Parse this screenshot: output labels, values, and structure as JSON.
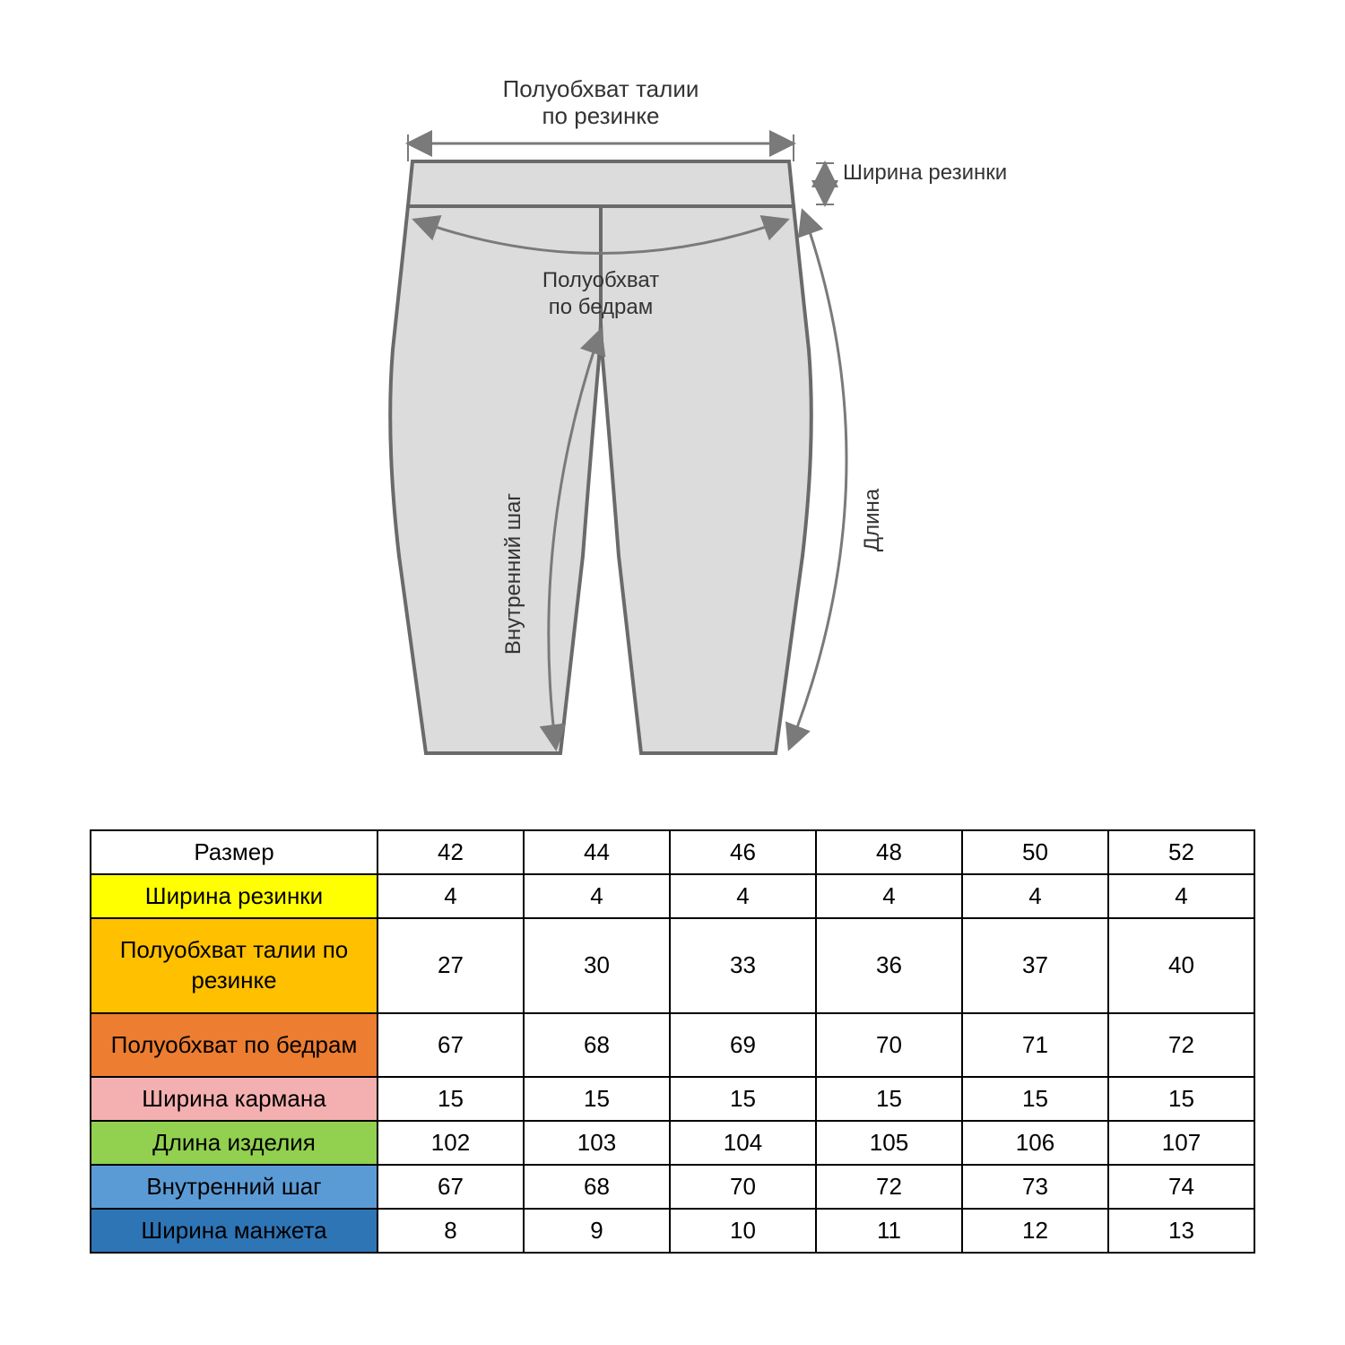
{
  "diagram": {
    "labels": {
      "waist_top1": "Полуобхват талии",
      "waist_top2": "по резинке",
      "elastic_width": "Ширина резинки",
      "hips1": "Полуобхват",
      "hips2": "по бедрам",
      "length": "Длина",
      "inseam": "Внутренний шаг"
    },
    "colors": {
      "pants_fill": "#dcdcdc",
      "pants_stroke": "#6a6a6a",
      "arrow": "#7a7a7a",
      "text": "#333333",
      "bg": "#ffffff"
    }
  },
  "table": {
    "columns": [
      "Размер",
      "42",
      "44",
      "46",
      "48",
      "50",
      "52"
    ],
    "rows": [
      {
        "label": "Ширина резинки",
        "bg": "#ffff00",
        "values": [
          "4",
          "4",
          "4",
          "4",
          "4",
          "4"
        ],
        "tall": false
      },
      {
        "label": "Полуобхват талии по резинке",
        "bg": "#ffc000",
        "values": [
          "27",
          "30",
          "33",
          "36",
          "37",
          "40"
        ],
        "tall": true
      },
      {
        "label": "Полуобхват по бедрам",
        "bg": "#ed7d31",
        "values": [
          "67",
          "68",
          "69",
          "70",
          "71",
          "72"
        ],
        "tall": true
      },
      {
        "label": "Ширина кармана",
        "bg": "#f4b0b0",
        "values": [
          "15",
          "15",
          "15",
          "15",
          "15",
          "15"
        ],
        "tall": false
      },
      {
        "label": "Длина изделия",
        "bg": "#92d050",
        "values": [
          "102",
          "103",
          "104",
          "105",
          "106",
          "107"
        ],
        "tall": false
      },
      {
        "label": "Внутренний шаг",
        "bg": "#5b9bd5",
        "values": [
          "67",
          "68",
          "70",
          "72",
          "73",
          "74"
        ],
        "tall": false
      },
      {
        "label": "Ширина манжета",
        "bg": "#2e75b6",
        "values": [
          "8",
          "9",
          "10",
          "11",
          "12",
          "13"
        ],
        "tall": false
      }
    ],
    "border_color": "#000000",
    "cell_bg": "#ffffff"
  }
}
